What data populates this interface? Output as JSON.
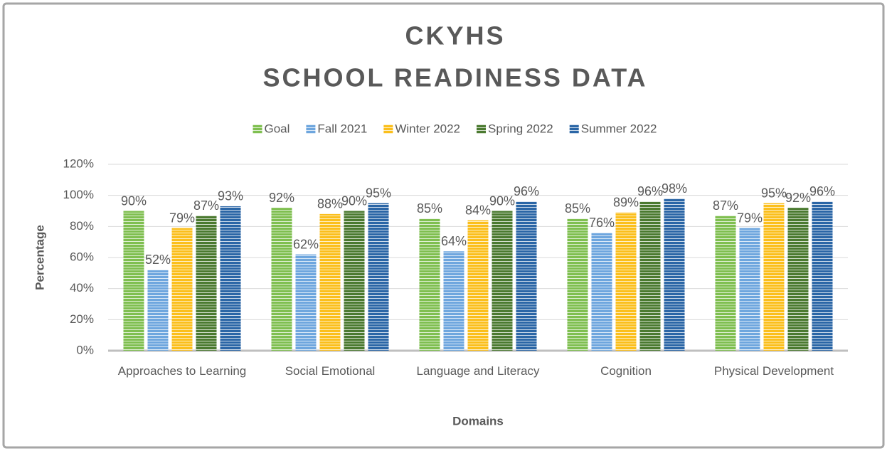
{
  "chart_data": {
    "type": "bar",
    "title": "CKYHS",
    "subtitle": "SCHOOL READINESS DATA",
    "x_label": "Domains",
    "y_label": "Percentage",
    "categories": [
      "Approaches to Learning",
      "Social Emotional",
      "Language and Literacy",
      "Cognition",
      "Physical Development"
    ],
    "series": [
      {
        "name": "Goal",
        "color": "#7fbf50",
        "values": [
          90,
          92,
          85,
          85,
          87
        ],
        "value_labels": [
          "90%",
          "92%",
          "85%",
          "85%",
          "87%"
        ]
      },
      {
        "name": "Fall 2021",
        "color": "#6ea6de",
        "values": [
          52,
          62,
          64,
          76,
          79
        ],
        "value_labels": [
          "52%",
          "62%",
          "64%",
          "76%",
          "79%"
        ]
      },
      {
        "name": "Winter 2022",
        "color": "#fbbf1c",
        "values": [
          79,
          88,
          84,
          89,
          95
        ],
        "value_labels": [
          "79%",
          "88%",
          "84%",
          "89%",
          "95%"
        ]
      },
      {
        "name": "Spring 2022",
        "color": "#4b7a30",
        "values": [
          87,
          90,
          90,
          96,
          92
        ],
        "value_labels": [
          "87%",
          "90%",
          "90%",
          "96%",
          "92%"
        ]
      },
      {
        "name": "Summer 2022",
        "color": "#2b66a6",
        "values": [
          93,
          95,
          96,
          98,
          96
        ],
        "value_labels": [
          "93%",
          "95%",
          "96%",
          "98%",
          "96%"
        ]
      }
    ],
    "ylim": [
      0,
      120
    ],
    "yticks": [
      {
        "value": 0,
        "label": "0%"
      },
      {
        "value": 20,
        "label": "20%"
      },
      {
        "value": 40,
        "label": "40%"
      },
      {
        "value": 60,
        "label": "60%"
      },
      {
        "value": 80,
        "label": "80%"
      },
      {
        "value": 100,
        "label": "100%"
      },
      {
        "value": 120,
        "label": "120%"
      }
    ],
    "grid": true,
    "legend": "top"
  }
}
